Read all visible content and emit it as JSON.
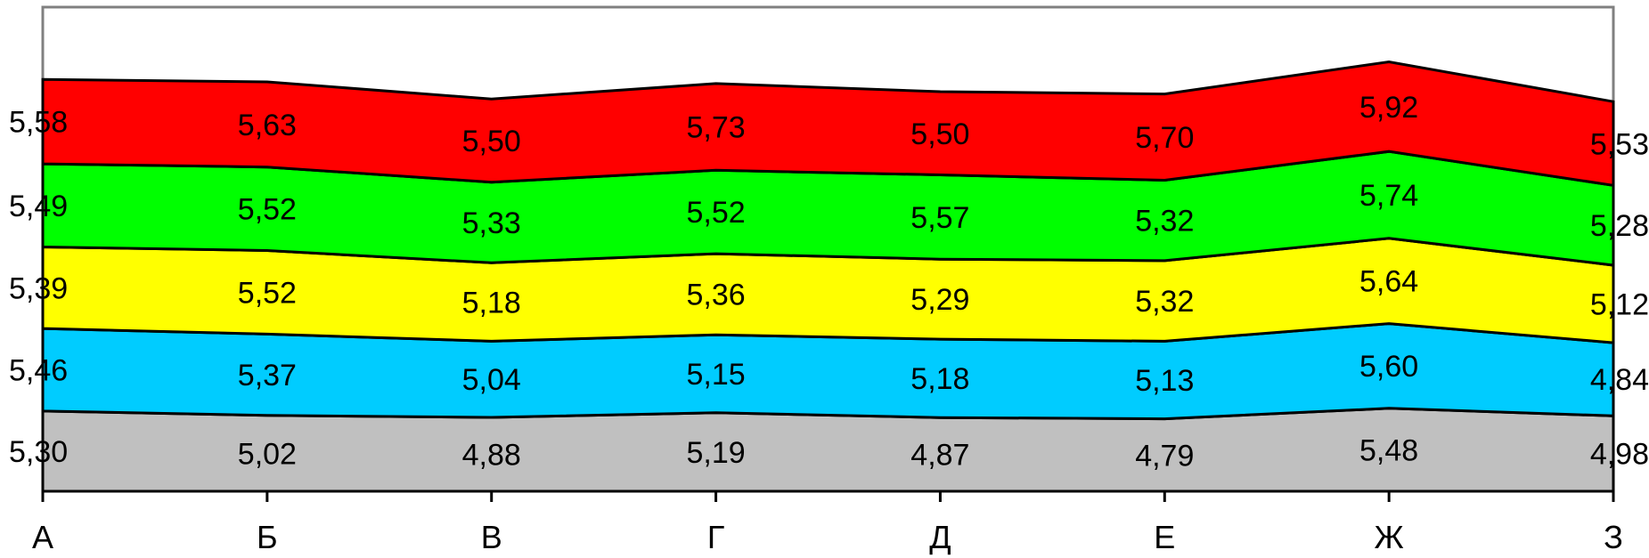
{
  "chart_data": {
    "type": "area",
    "stacked": true,
    "categories": [
      "А",
      "Б",
      "В",
      "Г",
      "Д",
      "Е",
      "Ж",
      "З"
    ],
    "series": [
      {
        "color": "#c0c0c0",
        "values": [
          5.3,
          5.02,
          4.88,
          5.19,
          4.87,
          4.79,
          5.48,
          4.98
        ],
        "labels": [
          "5,30",
          "5,02",
          "4,88",
          "5,19",
          "4,87",
          "4,79",
          "5,48",
          "4,98"
        ]
      },
      {
        "color": "#00ccff",
        "values": [
          5.46,
          5.37,
          5.04,
          5.15,
          5.18,
          5.13,
          5.6,
          4.84
        ],
        "labels": [
          "5,46",
          "5,37",
          "5,04",
          "5,15",
          "5,18",
          "5,13",
          "5,60",
          "4,84"
        ]
      },
      {
        "color": "#ffff00",
        "values": [
          5.39,
          5.52,
          5.18,
          5.36,
          5.29,
          5.32,
          5.64,
          5.12
        ],
        "labels": [
          "5,39",
          "5,52",
          "5,18",
          "5,36",
          "5,29",
          "5,32",
          "5,64",
          "5,12"
        ]
      },
      {
        "color": "#00ff00",
        "values": [
          5.49,
          5.52,
          5.33,
          5.52,
          5.57,
          5.32,
          5.74,
          5.28
        ],
        "labels": [
          "5,49",
          "5,52",
          "5,33",
          "5,52",
          "5,57",
          "5,32",
          "5,74",
          "5,28"
        ]
      },
      {
        "color": "#ff0000",
        "values": [
          5.58,
          5.63,
          5.5,
          5.73,
          5.5,
          5.7,
          5.92,
          5.53
        ],
        "labels": [
          "5,58",
          "5,63",
          "5,50",
          "5,73",
          "5,50",
          "5,70",
          "5,92",
          "5,53"
        ]
      }
    ],
    "ylim": [
      0,
      32
    ],
    "grid": false,
    "legend": "none",
    "title": "",
    "xlabel": "",
    "ylabel": ""
  }
}
